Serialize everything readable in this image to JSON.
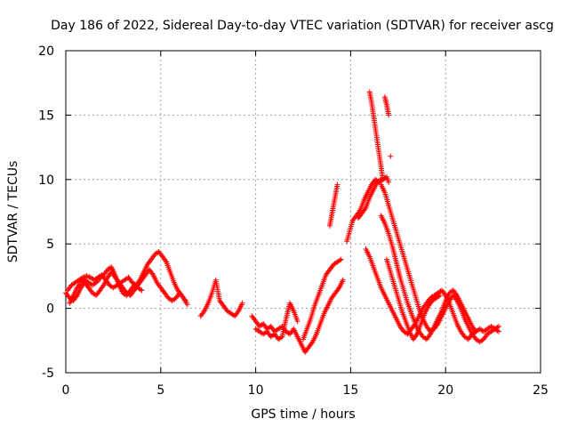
{
  "chart_data": {
    "type": "scatter",
    "title": "Day 186 of 2022, Sidereal Day-to-day VTEC variation (SDTVAR) for receiver ascg",
    "xlabel": "GPS time / hours",
    "ylabel": "SDTVAR / TECUs",
    "xlim": [
      0,
      25
    ],
    "ylim": [
      -5,
      20
    ],
    "xticks": [
      0,
      5,
      10,
      15,
      20,
      25
    ],
    "yticks": [
      -5,
      0,
      5,
      10,
      15,
      20
    ],
    "grid": true,
    "marker": "+",
    "color": "#ff0000",
    "segments": [
      [
        [
          0.0,
          1.2
        ],
        [
          0.2,
          0.8
        ],
        [
          0.4,
          0.6
        ],
        [
          0.6,
          1.0
        ],
        [
          0.8,
          1.6
        ],
        [
          1.0,
          2.0
        ],
        [
          1.2,
          1.6
        ],
        [
          1.4,
          1.2
        ],
        [
          1.6,
          1.0
        ],
        [
          1.8,
          1.4
        ],
        [
          2.0,
          1.8
        ],
        [
          2.2,
          2.4
        ],
        [
          2.4,
          2.8
        ],
        [
          2.6,
          2.4
        ],
        [
          2.8,
          2.0
        ],
        [
          3.0,
          1.6
        ],
        [
          3.2,
          1.2
        ],
        [
          3.4,
          1.0
        ],
        [
          3.6,
          1.4
        ],
        [
          3.8,
          1.8
        ],
        [
          4.0,
          2.2
        ],
        [
          4.2,
          2.6
        ],
        [
          4.4,
          3.0
        ],
        [
          4.6,
          2.6
        ],
        [
          4.8,
          2.0
        ],
        [
          5.0,
          1.6
        ],
        [
          5.2,
          1.2
        ],
        [
          5.4,
          0.8
        ],
        [
          5.6,
          0.6
        ],
        [
          5.8,
          0.8
        ],
        [
          6.0,
          1.2
        ],
        [
          6.2,
          0.8
        ],
        [
          6.4,
          0.3
        ]
      ],
      [
        [
          0.1,
          1.4
        ],
        [
          0.3,
          1.8
        ],
        [
          0.5,
          2.0
        ],
        [
          0.7,
          2.2
        ],
        [
          0.9,
          2.4
        ],
        [
          1.1,
          2.5
        ],
        [
          1.3,
          2.4
        ],
        [
          1.5,
          2.2
        ],
        [
          1.7,
          2.4
        ],
        [
          1.9,
          2.6
        ],
        [
          2.1,
          2.2
        ],
        [
          2.3,
          1.8
        ],
        [
          2.5,
          1.6
        ],
        [
          2.7,
          1.8
        ],
        [
          2.9,
          2.0
        ],
        [
          3.1,
          2.2
        ],
        [
          3.3,
          2.4
        ],
        [
          3.5,
          2.0
        ],
        [
          3.7,
          1.8
        ],
        [
          3.9,
          2.2
        ],
        [
          4.1,
          2.8
        ],
        [
          4.3,
          3.4
        ],
        [
          4.5,
          3.8
        ],
        [
          4.7,
          4.2
        ],
        [
          4.9,
          4.4
        ],
        [
          5.1,
          4.0
        ],
        [
          5.3,
          3.6
        ],
        [
          5.5,
          2.8
        ],
        [
          5.7,
          2.0
        ],
        [
          5.9,
          1.4
        ],
        [
          6.1,
          1.0
        ],
        [
          6.3,
          0.6
        ]
      ],
      [
        [
          0.2,
          0.4
        ],
        [
          0.4,
          1.0
        ],
        [
          0.6,
          1.6
        ],
        [
          0.8,
          2.0
        ],
        [
          1.0,
          2.2
        ],
        [
          1.2,
          2.0
        ],
        [
          1.4,
          1.8
        ],
        [
          1.6,
          2.0
        ],
        [
          1.8,
          2.3
        ],
        [
          2.0,
          2.6
        ],
        [
          2.2,
          3.0
        ],
        [
          2.4,
          3.2
        ],
        [
          2.6,
          2.6
        ],
        [
          2.8,
          1.8
        ],
        [
          3.0,
          1.2
        ],
        [
          3.2,
          1.0
        ],
        [
          3.4,
          1.4
        ],
        [
          3.6,
          1.8
        ],
        [
          3.8,
          1.6
        ],
        [
          4.0,
          1.4
        ]
      ],
      [
        [
          7.1,
          -0.6
        ],
        [
          7.3,
          -0.2
        ],
        [
          7.5,
          0.4
        ],
        [
          7.7,
          1.2
        ],
        [
          7.9,
          2.2
        ],
        [
          8.1,
          0.6
        ],
        [
          8.3,
          0.2
        ],
        [
          8.5,
          -0.2
        ],
        [
          8.7,
          -0.4
        ],
        [
          8.9,
          -0.6
        ],
        [
          9.1,
          -0.2
        ],
        [
          9.3,
          0.4
        ]
      ],
      [
        [
          9.8,
          -0.6
        ],
        [
          10.0,
          -1.0
        ],
        [
          10.2,
          -1.4
        ],
        [
          10.4,
          -1.2
        ],
        [
          10.6,
          -1.6
        ],
        [
          10.8,
          -1.4
        ],
        [
          11.0,
          -1.8
        ],
        [
          11.2,
          -1.6
        ],
        [
          11.4,
          -1.4
        ],
        [
          11.6,
          -1.8
        ],
        [
          11.8,
          -2.0
        ],
        [
          12.0,
          -1.6
        ],
        [
          12.2,
          -2.2
        ],
        [
          12.4,
          -2.8
        ],
        [
          12.6,
          -3.4
        ],
        [
          12.8,
          -3.0
        ],
        [
          13.0,
          -2.6
        ],
        [
          13.2,
          -2.0
        ],
        [
          13.4,
          -1.2
        ],
        [
          13.6,
          -0.4
        ],
        [
          13.8,
          0.2
        ],
        [
          14.0,
          0.8
        ],
        [
          14.2,
          1.2
        ],
        [
          14.4,
          1.6
        ],
        [
          14.6,
          2.2
        ]
      ],
      [
        [
          10.0,
          -1.6
        ],
        [
          10.2,
          -1.8
        ],
        [
          10.4,
          -2.0
        ],
        [
          10.6,
          -1.8
        ],
        [
          10.8,
          -2.2
        ],
        [
          11.0,
          -2.0
        ],
        [
          11.2,
          -2.4
        ],
        [
          11.4,
          -2.2
        ],
        [
          11.6,
          -0.8
        ],
        [
          11.8,
          0.4
        ],
        [
          12.0,
          -0.2
        ],
        [
          12.2,
          -1.0
        ]
      ],
      [
        [
          12.5,
          -2.4
        ],
        [
          12.7,
          -1.6
        ],
        [
          12.9,
          -0.8
        ],
        [
          13.1,
          0.2
        ],
        [
          13.3,
          1.0
        ],
        [
          13.5,
          1.8
        ],
        [
          13.7,
          2.6
        ],
        [
          13.9,
          3.0
        ],
        [
          14.1,
          3.4
        ],
        [
          14.3,
          3.6
        ],
        [
          14.5,
          3.8
        ]
      ],
      [
        [
          13.9,
          6.4
        ],
        [
          14.0,
          7.2
        ],
        [
          14.1,
          8.0
        ],
        [
          14.2,
          8.8
        ],
        [
          14.3,
          9.6
        ]
      ],
      [
        [
          14.8,
          5.2
        ],
        [
          15.1,
          6.8
        ],
        [
          15.3,
          7.2
        ],
        [
          15.5,
          7.6
        ],
        [
          15.7,
          8.4
        ],
        [
          15.9,
          9.0
        ],
        [
          16.1,
          9.6
        ],
        [
          16.3,
          10.0
        ],
        [
          16.5,
          9.8
        ],
        [
          16.7,
          10.0
        ],
        [
          16.9,
          10.2
        ],
        [
          17.0,
          9.8
        ]
      ],
      [
        [
          15.4,
          7.0
        ],
        [
          15.6,
          7.4
        ],
        [
          15.8,
          7.8
        ],
        [
          16.0,
          8.6
        ],
        [
          16.2,
          9.2
        ],
        [
          16.4,
          9.8
        ],
        [
          16.6,
          10.0
        ]
      ],
      [
        [
          15.8,
          4.6
        ],
        [
          16.0,
          4.0
        ],
        [
          16.2,
          3.2
        ],
        [
          16.4,
          2.4
        ],
        [
          16.6,
          1.6
        ],
        [
          16.8,
          1.0
        ],
        [
          17.0,
          0.4
        ],
        [
          17.2,
          -0.2
        ],
        [
          17.4,
          -0.8
        ],
        [
          17.6,
          -1.4
        ],
        [
          17.8,
          -1.8
        ],
        [
          18.0,
          -2.0
        ],
        [
          18.2,
          -1.6
        ],
        [
          18.4,
          -1.2
        ],
        [
          18.6,
          -0.6
        ],
        [
          18.8,
          0.0
        ],
        [
          19.0,
          0.4
        ],
        [
          19.2,
          0.8
        ],
        [
          19.4,
          1.0
        ],
        [
          19.6,
          1.2
        ],
        [
          19.8,
          1.4
        ],
        [
          20.0,
          1.0
        ],
        [
          20.2,
          0.4
        ],
        [
          20.4,
          -0.4
        ],
        [
          20.6,
          -1.2
        ],
        [
          20.8,
          -1.8
        ],
        [
          21.0,
          -2.2
        ],
        [
          21.2,
          -2.4
        ],
        [
          21.4,
          -2.0
        ],
        [
          21.6,
          -1.8
        ],
        [
          21.8,
          -1.6
        ],
        [
          22.0,
          -1.8
        ],
        [
          22.2,
          -1.6
        ],
        [
          22.4,
          -1.4
        ],
        [
          22.6,
          -1.6
        ],
        [
          22.8,
          -1.4
        ]
      ],
      [
        [
          16.0,
          16.8
        ],
        [
          16.1,
          16.0
        ],
        [
          16.2,
          15.0
        ],
        [
          16.3,
          14.0
        ],
        [
          16.4,
          13.0
        ],
        [
          16.5,
          12.0
        ],
        [
          16.6,
          11.0
        ],
        [
          16.7,
          10.0
        ]
      ],
      [
        [
          16.8,
          16.4
        ],
        [
          16.9,
          15.8
        ],
        [
          17.0,
          15.0
        ]
      ],
      [
        [
          17.1,
          11.8
        ]
      ],
      [
        [
          16.6,
          9.6
        ],
        [
          16.8,
          9.0
        ],
        [
          17.0,
          8.0
        ],
        [
          17.2,
          7.0
        ],
        [
          17.4,
          6.0
        ],
        [
          17.6,
          5.0
        ],
        [
          17.8,
          4.0
        ],
        [
          18.0,
          3.0
        ],
        [
          18.2,
          2.0
        ],
        [
          18.4,
          1.0
        ],
        [
          18.6,
          0.0
        ],
        [
          18.8,
          -0.8
        ],
        [
          19.0,
          -1.4
        ],
        [
          19.2,
          -1.8
        ],
        [
          19.4,
          -1.6
        ],
        [
          19.6,
          -1.2
        ],
        [
          19.8,
          -0.6
        ],
        [
          20.0,
          0.0
        ],
        [
          20.2,
          0.6
        ],
        [
          20.4,
          1.0
        ],
        [
          20.6,
          0.6
        ],
        [
          20.8,
          0.0
        ],
        [
          21.0,
          -0.8
        ],
        [
          21.2,
          -1.4
        ],
        [
          21.4,
          -2.0
        ],
        [
          21.6,
          -2.4
        ],
        [
          21.8,
          -2.6
        ],
        [
          22.0,
          -2.4
        ],
        [
          22.2,
          -2.0
        ],
        [
          22.4,
          -1.8
        ],
        [
          22.6,
          -1.6
        ],
        [
          22.8,
          -1.8
        ]
      ],
      [
        [
          16.6,
          7.2
        ],
        [
          16.8,
          6.6
        ],
        [
          17.0,
          5.8
        ],
        [
          17.2,
          4.8
        ],
        [
          17.4,
          3.6
        ],
        [
          17.6,
          2.4
        ],
        [
          17.8,
          1.4
        ],
        [
          18.0,
          0.4
        ],
        [
          18.2,
          -0.4
        ],
        [
          18.4,
          -1.2
        ],
        [
          18.6,
          -1.8
        ],
        [
          18.8,
          -2.2
        ],
        [
          19.0,
          -2.4
        ],
        [
          19.2,
          -2.0
        ],
        [
          19.4,
          -1.4
        ],
        [
          19.6,
          -0.8
        ],
        [
          19.8,
          -0.2
        ],
        [
          20.0,
          0.6
        ],
        [
          20.2,
          1.2
        ],
        [
          20.4,
          1.4
        ],
        [
          20.6,
          1.0
        ],
        [
          20.8,
          0.4
        ],
        [
          21.0,
          -0.2
        ],
        [
          21.2,
          -0.8
        ],
        [
          21.4,
          -1.4
        ],
        [
          21.6,
          -1.8
        ]
      ],
      [
        [
          16.9,
          3.8
        ],
        [
          17.1,
          2.8
        ],
        [
          17.3,
          1.8
        ],
        [
          17.5,
          0.8
        ],
        [
          17.7,
          -0.2
        ],
        [
          17.9,
          -1.0
        ],
        [
          18.1,
          -1.8
        ],
        [
          18.3,
          -2.4
        ],
        [
          18.5,
          -2.0
        ],
        [
          18.7,
          -1.2
        ],
        [
          18.9,
          -0.4
        ],
        [
          19.1,
          0.2
        ],
        [
          19.3,
          0.6
        ],
        [
          19.5,
          0.8
        ],
        [
          19.7,
          1.0
        ]
      ]
    ]
  }
}
